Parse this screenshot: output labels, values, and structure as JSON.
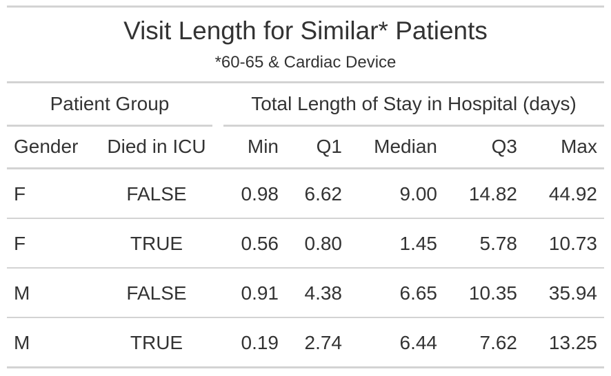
{
  "chart_data": {
    "type": "table",
    "title": "Visit Length for Similar* Patients",
    "subtitle": "*60-65 & Cardiac Device",
    "spanners": [
      "Patient Group",
      "Total Length of Stay in Hospital (days)"
    ],
    "columns": [
      "Gender",
      "Died in ICU",
      "Min",
      "Q1",
      "Median",
      "Q3",
      "Max"
    ],
    "rows": [
      [
        "F",
        "FALSE",
        "0.98",
        "6.62",
        "9.00",
        "14.82",
        "44.92"
      ],
      [
        "F",
        "TRUE",
        "0.56",
        "0.80",
        "1.45",
        "5.78",
        "10.73"
      ],
      [
        "M",
        "FALSE",
        "0.91",
        "4.38",
        "6.65",
        "10.35",
        "35.94"
      ],
      [
        "M",
        "TRUE",
        "0.19",
        "2.74",
        "6.44",
        "7.62",
        "13.25"
      ]
    ]
  }
}
